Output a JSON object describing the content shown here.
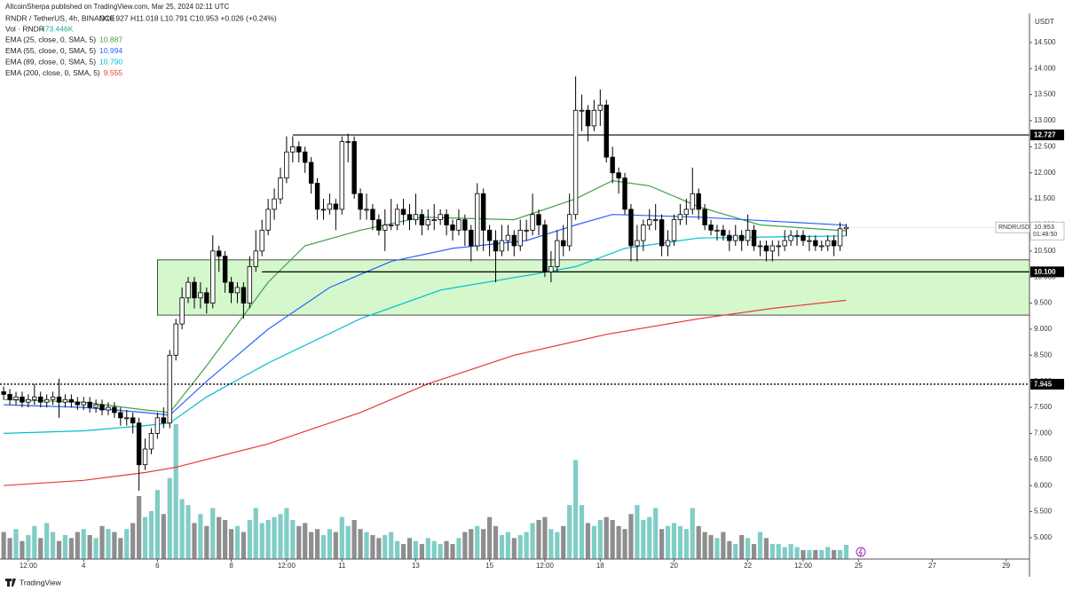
{
  "header": {
    "publisher": "AltcoinSherpa published on TradingView.com, Mar 25, 2024 02:11 UTC",
    "brand": "TradingView"
  },
  "chart_data": {
    "type": "candlestick",
    "symbol_line": "RNDR / TetherUS, 4h, BINANCE",
    "ohlc_line": "O10.927 H11.018 L10.791 C10.953 +0.026 (+0.24%)",
    "volume_name": "Vol · RNDR",
    "volume_label": "473.446K",
    "currency": "USDT",
    "symbol": "RNDRUSDT",
    "countdown": "01:48:50",
    "up_color": "#ffffff",
    "down_color": "#000000",
    "volume_up_color": "#80cdc6",
    "volume_down_color": "#8e8e8e",
    "xlim": [
      -13.6,
      153.8
    ],
    "ylim": [
      4.59,
      15.06
    ],
    "vlim": [
      0,
      5500
    ],
    "xticks": [
      {
        "value": -9,
        "label": "12:00"
      },
      {
        "value": 0,
        "label": "4"
      },
      {
        "value": 12,
        "label": "6"
      },
      {
        "value": 24,
        "label": "8"
      },
      {
        "value": 33,
        "label": "12:00"
      },
      {
        "value": 42,
        "label": "11"
      },
      {
        "value": 54,
        "label": "13"
      },
      {
        "value": 66,
        "label": "15"
      },
      {
        "value": 75,
        "label": "12:00"
      },
      {
        "value": 84,
        "label": "18"
      },
      {
        "value": 96,
        "label": "20"
      },
      {
        "value": 108,
        "label": "22"
      },
      {
        "value": 117,
        "label": "12:00"
      },
      {
        "value": 126,
        "label": "25"
      },
      {
        "value": 138,
        "label": "27"
      },
      {
        "value": 150,
        "label": "29"
      }
    ],
    "yticks": [
      {
        "value": 5,
        "label": "5.000"
      },
      {
        "value": 5.5,
        "label": "5.500"
      },
      {
        "value": 6,
        "label": "6.000"
      },
      {
        "value": 6.5,
        "label": "6.500"
      },
      {
        "value": 7,
        "label": "7.000"
      },
      {
        "value": 7.5,
        "label": "7.500"
      },
      {
        "value": 8,
        "label": "8.000"
      },
      {
        "value": 8.5,
        "label": "8.500"
      },
      {
        "value": 9,
        "label": "9.000"
      },
      {
        "value": 9.5,
        "label": "9.500"
      },
      {
        "value": 10,
        "label": "10.000"
      },
      {
        "value": 10.5,
        "label": "10.500"
      },
      {
        "value": 11,
        "label": "11.000"
      },
      {
        "value": 11.5,
        "label": "11.500"
      },
      {
        "value": 12,
        "label": "12.000"
      },
      {
        "value": 12.5,
        "label": "12.500"
      },
      {
        "value": 13,
        "label": "13.000"
      },
      {
        "value": 13.5,
        "label": "13.500"
      },
      {
        "value": 14,
        "label": "14.000"
      },
      {
        "value": 14.5,
        "label": "14.500"
      }
    ],
    "x": [
      -13,
      -12,
      -11,
      -10,
      -9,
      -8,
      -7,
      -6,
      -5,
      -4,
      -3,
      -2,
      -1,
      0,
      1,
      2,
      3,
      4,
      5,
      6,
      7,
      8,
      9,
      10,
      11,
      12,
      13,
      14,
      15,
      16,
      17,
      18,
      19,
      20,
      21,
      22,
      23,
      24,
      25,
      26,
      27,
      28,
      29,
      30,
      31,
      32,
      33,
      34,
      35,
      36,
      37,
      38,
      39,
      40,
      41,
      42,
      43,
      44,
      45,
      46,
      47,
      48,
      49,
      50,
      51,
      52,
      53,
      54,
      55,
      56,
      57,
      58,
      59,
      60,
      61,
      62,
      63,
      64,
      65,
      66,
      67,
      68,
      69,
      70,
      71,
      72,
      73,
      74,
      75,
      76,
      77,
      78,
      79,
      80,
      81,
      82,
      83,
      84,
      85,
      86,
      87,
      88,
      89,
      90,
      91,
      92,
      93,
      94,
      95,
      96,
      97,
      98,
      99,
      100,
      101,
      102,
      103,
      104,
      105,
      106,
      107,
      108,
      109,
      110,
      111,
      112,
      113,
      114,
      115,
      116,
      117,
      118,
      119,
      120,
      121,
      122,
      123,
      124
    ],
    "open": [
      7.8,
      7.75,
      7.65,
      7.7,
      7.6,
      7.65,
      7.7,
      7.6,
      7.65,
      7.7,
      7.6,
      7.65,
      7.6,
      7.55,
      7.6,
      7.5,
      7.55,
      7.45,
      7.5,
      7.4,
      7.3,
      7.3,
      7.2,
      6.4,
      6.7,
      7.0,
      7.3,
      7.2,
      8.5,
      9.1,
      9.6,
      9.9,
      9.6,
      9.7,
      9.5,
      10.5,
      10.4,
      9.9,
      9.7,
      9.8,
      9.5,
      10.2,
      10.5,
      10.9,
      11.3,
      11.5,
      11.9,
      12.4,
      12.5,
      12.4,
      12.2,
      11.8,
      11.3,
      11.3,
      11.4,
      11.3,
      12.6,
      12.6,
      11.6,
      11.3,
      11.3,
      11.1,
      10.9,
      11.0,
      11.0,
      11.3,
      11.2,
      11.1,
      11.2,
      11.0,
      11.1,
      11.1,
      11.2,
      11.0,
      10.9,
      11.1,
      10.9,
      10.6,
      11.6,
      10.9,
      10.7,
      10.5,
      10.7,
      10.8,
      10.6,
      10.9,
      10.9,
      11.2,
      11.0,
      10.1,
      10.2,
      10.7,
      10.6,
      11.2,
      13.2,
      13.2,
      12.9,
      13.2,
      13.3,
      12.3,
      12.0,
      11.9,
      11.3,
      10.6,
      10.7,
      11.0,
      11.1,
      11.1,
      10.6,
      10.7,
      11.1,
      11.2,
      11.3,
      11.6,
      11.3,
      11.0,
      10.9,
      10.9,
      10.8,
      10.7,
      10.8,
      10.7,
      10.9,
      10.6,
      10.6,
      10.5,
      10.6,
      10.6,
      10.7,
      10.8,
      10.8,
      10.7,
      10.7,
      10.6,
      10.6,
      10.7,
      10.6,
      10.927
    ],
    "high": [
      7.9,
      7.85,
      7.8,
      7.8,
      7.75,
      7.95,
      7.8,
      7.75,
      7.8,
      8.05,
      7.75,
      7.75,
      7.7,
      7.7,
      7.7,
      7.65,
      7.65,
      7.6,
      7.6,
      7.5,
      7.45,
      7.4,
      7.3,
      6.9,
      7.1,
      7.4,
      7.5,
      8.6,
      9.2,
      9.8,
      10.0,
      10.0,
      9.9,
      9.8,
      10.8,
      10.6,
      10.5,
      10.0,
      9.9,
      9.9,
      10.4,
      10.9,
      11.1,
      11.5,
      11.7,
      12.1,
      12.7,
      12.7,
      12.6,
      12.5,
      12.3,
      11.9,
      11.5,
      11.6,
      11.5,
      12.7,
      12.75,
      12.7,
      11.7,
      11.6,
      11.4,
      11.2,
      11.3,
      11.5,
      11.4,
      11.5,
      11.4,
      11.6,
      11.3,
      11.3,
      11.4,
      11.3,
      11.3,
      11.1,
      11.3,
      11.2,
      11.0,
      11.8,
      11.7,
      11.0,
      10.9,
      11.0,
      11.0,
      10.9,
      11.1,
      11.1,
      11.6,
      11.3,
      11.1,
      10.5,
      10.9,
      11.0,
      11.6,
      13.85,
      13.5,
      13.3,
      13.4,
      13.6,
      13.4,
      12.5,
      12.1,
      12.0,
      11.4,
      11.0,
      11.1,
      11.3,
      11.4,
      11.2,
      10.9,
      11.2,
      11.4,
      11.5,
      12.1,
      11.7,
      11.4,
      11.1,
      11.0,
      11.0,
      10.9,
      11.0,
      10.9,
      11.2,
      11.0,
      10.7,
      10.7,
      10.7,
      10.7,
      10.9,
      10.9,
      10.9,
      10.9,
      10.8,
      10.8,
      10.7,
      10.8,
      10.8,
      11.05,
      11.018
    ],
    "low": [
      7.65,
      7.55,
      7.55,
      7.5,
      7.5,
      7.55,
      7.5,
      7.5,
      7.55,
      7.3,
      7.5,
      7.5,
      7.45,
      7.45,
      7.4,
      7.4,
      7.35,
      7.35,
      7.3,
      7.15,
      7.15,
      7.0,
      5.9,
      6.3,
      6.6,
      6.9,
      7.1,
      7.1,
      8.4,
      9.0,
      9.5,
      9.4,
      9.4,
      9.3,
      9.4,
      10.1,
      9.7,
      9.5,
      9.5,
      9.2,
      9.4,
      10.1,
      10.4,
      10.8,
      11.1,
      11.4,
      11.8,
      12.2,
      12.2,
      12.0,
      11.6,
      11.1,
      11.1,
      11.2,
      10.9,
      11.2,
      12.2,
      11.5,
      11.1,
      11.1,
      10.9,
      10.8,
      10.5,
      10.9,
      10.9,
      11.0,
      10.9,
      11.0,
      10.8,
      10.9,
      10.9,
      11.0,
      10.8,
      10.7,
      10.8,
      10.6,
      10.3,
      10.5,
      10.5,
      10.4,
      9.9,
      10.4,
      10.5,
      10.4,
      10.5,
      10.7,
      10.8,
      10.8,
      10.0,
      9.9,
      10.1,
      10.4,
      10.5,
      11.1,
      12.8,
      12.6,
      12.8,
      12.9,
      12.2,
      11.8,
      11.6,
      11.2,
      10.3,
      10.3,
      10.5,
      10.9,
      10.9,
      10.4,
      10.4,
      10.6,
      11.0,
      11.0,
      11.2,
      11.1,
      10.9,
      10.8,
      10.7,
      10.7,
      10.5,
      10.6,
      10.5,
      10.6,
      10.5,
      10.4,
      10.3,
      10.3,
      10.4,
      10.5,
      10.6,
      10.6,
      10.6,
      10.5,
      10.5,
      10.5,
      10.5,
      10.4,
      10.5,
      10.791
    ],
    "close": [
      7.75,
      7.65,
      7.7,
      7.6,
      7.65,
      7.7,
      7.6,
      7.65,
      7.7,
      7.6,
      7.65,
      7.6,
      7.55,
      7.6,
      7.5,
      7.55,
      7.45,
      7.5,
      7.4,
      7.3,
      7.3,
      7.2,
      6.4,
      6.7,
      7.0,
      7.3,
      7.2,
      8.5,
      9.1,
      9.6,
      9.9,
      9.6,
      9.7,
      9.5,
      10.5,
      10.4,
      9.9,
      9.7,
      9.8,
      9.5,
      10.2,
      10.5,
      10.9,
      11.3,
      11.5,
      11.9,
      12.4,
      12.5,
      12.4,
      12.2,
      11.8,
      11.3,
      11.3,
      11.4,
      11.3,
      12.6,
      12.6,
      11.6,
      11.3,
      11.3,
      11.1,
      10.9,
      11.0,
      11.0,
      11.3,
      11.2,
      11.1,
      11.2,
      11.0,
      11.1,
      11.1,
      11.2,
      11.0,
      10.9,
      11.1,
      10.9,
      10.6,
      11.6,
      10.9,
      10.7,
      10.5,
      10.7,
      10.8,
      10.6,
      10.9,
      10.9,
      11.2,
      11.0,
      10.1,
      10.2,
      10.7,
      10.6,
      11.2,
      13.2,
      13.2,
      12.9,
      13.2,
      13.3,
      12.3,
      12.0,
      11.9,
      11.3,
      10.6,
      10.7,
      11.0,
      11.1,
      11.1,
      10.6,
      10.7,
      11.1,
      11.2,
      11.3,
      11.6,
      11.3,
      11.0,
      10.9,
      10.9,
      10.8,
      10.7,
      10.8,
      10.7,
      10.9,
      10.6,
      10.6,
      10.5,
      10.6,
      10.6,
      10.7,
      10.8,
      10.8,
      10.7,
      10.7,
      10.6,
      10.6,
      10.7,
      10.6,
      10.927,
      10.953
    ],
    "volume": [
      900,
      700,
      1000,
      600,
      800,
      1100,
      700,
      1200,
      900,
      600,
      800,
      700,
      900,
      1000,
      800,
      700,
      1100,
      1000,
      900,
      700,
      1000,
      1200,
      2100,
      1400,
      1600,
      2300,
      1500,
      2700,
      4500,
      2000,
      1800,
      1200,
      1500,
      1100,
      1700,
      1400,
      1300,
      1000,
      1100,
      900,
      1300,
      1700,
      1200,
      1300,
      1400,
      1500,
      1700,
      1300,
      1100,
      1200,
      900,
      1000,
      800,
      1000,
      900,
      1400,
      1100,
      1300,
      1000,
      900,
      800,
      700,
      800,
      900,
      600,
      500,
      700,
      600,
      500,
      700,
      600,
      500,
      600,
      500,
      700,
      900,
      1000,
      1100,
      1000,
      1400,
      1100,
      800,
      900,
      700,
      800,
      900,
      1200,
      1300,
      1400,
      1000,
      900,
      1100,
      1800,
      3300,
      1800,
      1200,
      1100,
      1300,
      1400,
      1300,
      1100,
      1000,
      1500,
      1800,
      1300,
      1400,
      1700,
      1000,
      1100,
      1200,
      1100,
      1000,
      1700,
      1100,
      900,
      800,
      700,
      900,
      600,
      500,
      800,
      700,
      500,
      900,
      700,
      500,
      500,
      400,
      500,
      400,
      300,
      300,
      300,
      300,
      400,
      300,
      300,
      473.446
    ],
    "series": [
      {
        "name": "EMA (25, close, 0, SMA, 5)",
        "color": "#43a047",
        "last_label": "10.887",
        "x": [
          -13,
          0,
          10,
          14,
          20,
          30,
          36,
          45,
          55,
          70,
          80,
          86,
          92,
          100,
          110,
          124
        ],
        "values": [
          7.65,
          7.6,
          7.45,
          7.4,
          8.3,
          9.9,
          10.6,
          10.9,
          11.15,
          11.1,
          11.5,
          11.85,
          11.75,
          11.35,
          11.0,
          10.887
        ]
      },
      {
        "name": "EMA (55, close, 0, SMA, 5)",
        "color": "#2962ff",
        "last_label": "10.994",
        "x": [
          -13,
          0,
          10,
          14,
          20,
          30,
          40,
          50,
          60,
          72,
          80,
          86,
          100,
          124
        ],
        "values": [
          7.55,
          7.5,
          7.4,
          7.35,
          8.0,
          9.0,
          9.8,
          10.3,
          10.55,
          10.7,
          11.0,
          11.2,
          11.15,
          10.994
        ]
      },
      {
        "name": "EMA (89, close, 0, SMA, 5)",
        "color": "#00bcd4",
        "last_label": "10.790",
        "x": [
          -13,
          0,
          10,
          14,
          20,
          30,
          45,
          58,
          73,
          80,
          88,
          100,
          124
        ],
        "values": [
          7.0,
          7.05,
          7.15,
          7.2,
          7.7,
          8.35,
          9.2,
          9.75,
          10.05,
          10.2,
          10.55,
          10.75,
          10.79
        ]
      },
      {
        "name": "EMA (200, close, 0, SMA, 5)",
        "color": "#e53935",
        "last_label": "9.555",
        "x": [
          -13,
          0,
          10,
          15,
          30,
          45,
          56,
          70,
          85,
          100,
          112,
          124
        ],
        "values": [
          6.0,
          6.1,
          6.25,
          6.35,
          6.8,
          7.4,
          7.95,
          8.5,
          8.9,
          9.2,
          9.4,
          9.555
        ]
      }
    ],
    "levels": [
      {
        "value": 12.727,
        "label": "12.727",
        "from": 34,
        "dash": false
      },
      {
        "value": 10.1,
        "label": "10.100",
        "from": 29,
        "dash": false
      },
      {
        "value": 7.945,
        "label": "7.945",
        "from": -13.6,
        "dash": true
      }
    ],
    "zone": {
      "low": 9.27,
      "high": 10.33,
      "from": 12,
      "color": "#d4f7cc"
    }
  }
}
